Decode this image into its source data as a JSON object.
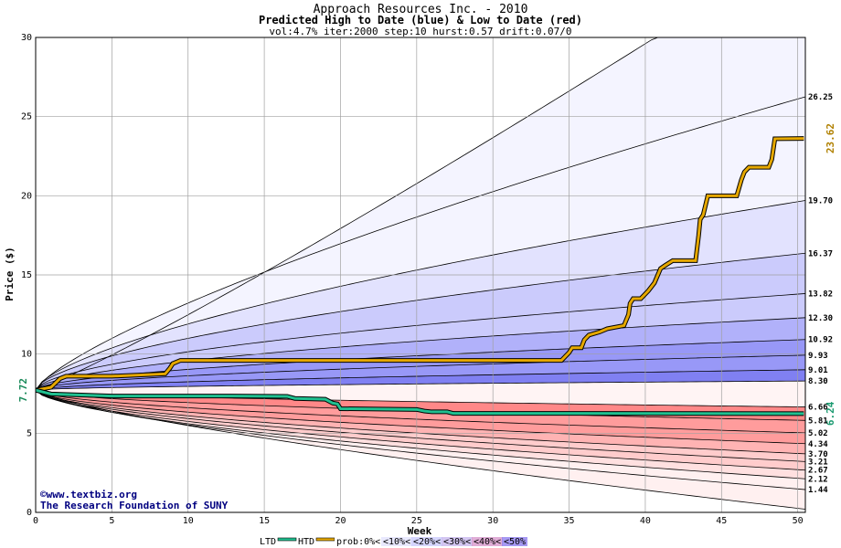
{
  "header": {
    "title": "Approach Resources Inc. - 2010",
    "subtitle": "Predicted High to Date (blue) &  Low to Date (red)",
    "params": "vol:4.7% iter:2000 step:10 hurst:0.57 drift:0.07/0"
  },
  "credit": {
    "line1": "©www.textbiz.org",
    "line2": "The Research Foundation of SUNY"
  },
  "colors": {
    "grid": "#a0a0a0",
    "htd": "#e6a800",
    "ltd": "#20c090",
    "blue_bands": [
      "#f4f4ff",
      "#e2e2fe",
      "#cbcbfc",
      "#b1b1fa",
      "#9898f7",
      "#8080f2"
    ],
    "red_bands": [
      "#fff0f0",
      "#ffe0e0",
      "#ffcccc",
      "#ffb3b3",
      "#ff9c9c",
      "#ff8888"
    ]
  },
  "chart_data": {
    "type": "area",
    "xlabel": "Week",
    "ylabel": "Price ($)",
    "xlim": [
      0,
      50.5
    ],
    "ylim": [
      0,
      30
    ],
    "xticks": [
      0,
      5,
      10,
      15,
      20,
      25,
      30,
      35,
      40,
      45,
      50
    ],
    "yticks": [
      0,
      5,
      10,
      15,
      20,
      25,
      30
    ],
    "grid": true,
    "start_price": 7.72,
    "start_label": "7.72",
    "end_labels": [
      "26.25",
      "19.70",
      "16.37",
      "13.82",
      "12.30",
      "10.92",
      "9.93",
      "9.01",
      "8.30",
      "6.66",
      "5.81",
      "5.02",
      "4.34",
      "3.70",
      "3.21",
      "2.67",
      "2.12",
      "1.44"
    ],
    "high_curves": [
      {
        "end": 36.0,
        "k": 1.1
      },
      {
        "end": 26.25,
        "k": 0.75
      },
      {
        "end": 19.7,
        "k": 0.65
      },
      {
        "end": 16.37,
        "k": 0.6
      },
      {
        "end": 13.82,
        "k": 0.57
      },
      {
        "end": 12.3,
        "k": 0.56
      },
      {
        "end": 10.92,
        "k": 0.55
      },
      {
        "end": 9.93,
        "k": 0.55
      },
      {
        "end": 9.01,
        "k": 0.55
      },
      {
        "end": 8.3,
        "k": 0.55
      }
    ],
    "low_curves": [
      {
        "end": 6.66,
        "k": 0.55
      },
      {
        "end": 5.81,
        "k": 0.55
      },
      {
        "end": 5.02,
        "k": 0.55
      },
      {
        "end": 4.34,
        "k": 0.55
      },
      {
        "end": 3.7,
        "k": 0.56
      },
      {
        "end": 3.21,
        "k": 0.57
      },
      {
        "end": 2.67,
        "k": 0.58
      },
      {
        "end": 2.12,
        "k": 0.6
      },
      {
        "end": 1.44,
        "k": 0.65
      },
      {
        "end": 0.2,
        "k": 0.75
      }
    ],
    "series": [
      {
        "name": "HTD",
        "end_label": "23.62",
        "x": [
          0,
          1,
          1.6,
          2,
          5,
          8.5,
          8.8,
          9,
          9.5,
          20,
          30,
          34.5,
          35,
          35.2,
          35.8,
          36,
          36.3,
          37,
          37.5,
          38.6,
          38.9,
          39,
          39.2,
          39.7,
          40.2,
          40.6,
          41,
          41.3,
          41.8,
          43.3,
          43.5,
          43.6,
          43.8,
          44.1,
          46,
          46.3,
          46.5,
          46.8,
          48.1,
          48.3,
          48.5,
          50.4
        ],
        "y": [
          7.72,
          7.9,
          8.45,
          8.6,
          8.6,
          8.75,
          9.1,
          9.4,
          9.6,
          9.6,
          9.6,
          9.6,
          10.1,
          10.4,
          10.4,
          10.9,
          11.2,
          11.4,
          11.6,
          11.8,
          12.5,
          13.2,
          13.5,
          13.5,
          14.0,
          14.5,
          15.4,
          15.6,
          15.9,
          15.9,
          17.5,
          18.5,
          18.8,
          20.0,
          20.0,
          21.0,
          21.5,
          21.8,
          21.8,
          22.3,
          23.6,
          23.62
        ]
      },
      {
        "name": "LTD",
        "end_label": "6.24",
        "x": [
          0,
          1,
          5,
          10,
          12,
          16.5,
          17,
          19,
          19.5,
          19.8,
          20,
          25,
          25.5,
          26,
          27,
          27.4,
          35,
          50.4
        ],
        "y": [
          7.72,
          7.48,
          7.35,
          7.35,
          7.35,
          7.33,
          7.2,
          7.15,
          6.9,
          6.85,
          6.55,
          6.5,
          6.4,
          6.35,
          6.35,
          6.25,
          6.25,
          6.24
        ]
      }
    ],
    "legend": {
      "items": [
        "LTD",
        "HTD",
        "prob:0%<",
        "<10%<",
        "<20%<",
        "<30%<",
        "<40%<",
        "<50%"
      ]
    }
  }
}
